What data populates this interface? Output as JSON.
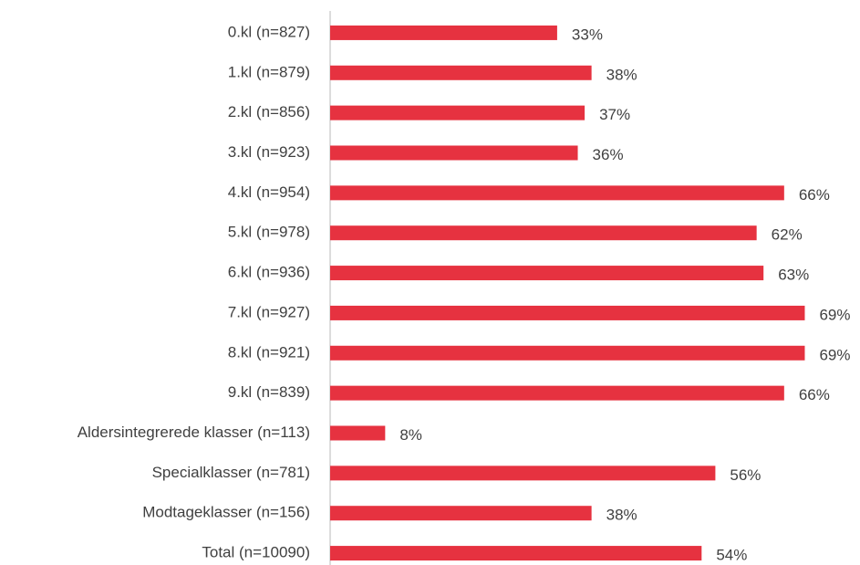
{
  "chart_data": {
    "type": "barh",
    "categories": [
      "0.kl (n=827)",
      "1.kl (n=879)",
      "2.kl (n=856)",
      "3.kl (n=923)",
      "4.kl (n=954)",
      "5.kl (n=978)",
      "6.kl (n=936)",
      "7.kl (n=927)",
      "8.kl (n=921)",
      "9.kl (n=839)",
      "Aldersintegrerede klasser (n=113)",
      "Specialklasser (n=781)",
      "Modtageklasser (n=156)",
      "Total (n=10090)"
    ],
    "values": [
      33,
      38,
      37,
      36,
      66,
      62,
      63,
      69,
      69,
      66,
      8,
      56,
      38,
      54
    ],
    "value_labels": [
      "33%",
      "38%",
      "37%",
      "36%",
      "66%",
      "62%",
      "63%",
      "69%",
      "69%",
      "66%",
      "8%",
      "56%",
      "38%",
      "54%"
    ],
    "color": "#e63240",
    "xlim": [
      0,
      70
    ]
  }
}
